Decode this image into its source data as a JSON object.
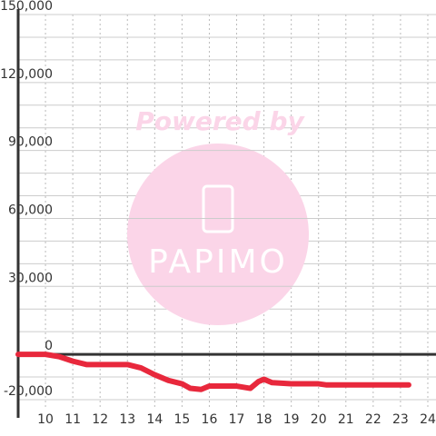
{
  "chart_data": {
    "type": "line",
    "watermark": [
      "Powered by",
      "PAPIMO"
    ],
    "x": [
      9,
      10,
      10.5,
      11,
      11.5,
      12,
      13,
      13.5,
      14,
      14.5,
      15,
      15.3,
      15.7,
      16,
      17,
      17.5,
      17.8,
      18,
      18.3,
      19,
      20,
      20.3,
      21,
      22,
      23.3
    ],
    "series": [
      {
        "color": "#e8283c",
        "values": [
          0,
          0,
          -1000,
          -3000,
          -4500,
          -4500,
          -4500,
          -6000,
          -9000,
          -11500,
          -13000,
          -15000,
          -15500,
          -14000,
          -14000,
          -15000,
          -12000,
          -11000,
          -12500,
          -13000,
          -13000,
          -13500,
          -13500,
          -13500,
          -13500
        ]
      }
    ],
    "xlim": [
      9,
      24.3
    ],
    "ylim": [
      -20000,
      150000
    ],
    "xticks": [
      10,
      11,
      12,
      13,
      14,
      15,
      16,
      17,
      18,
      19,
      20,
      21,
      22,
      23,
      24
    ],
    "yticks": [
      {
        "value": -20000,
        "label": "-20,000"
      },
      0,
      {
        "value": 30000,
        "label": "30,000"
      },
      {
        "value": 60000,
        "label": "60,000"
      },
      {
        "value": 90000,
        "label": "90,000"
      },
      {
        "value": 120000,
        "label": "120,000"
      },
      {
        "value": 150000,
        "label": "150,000"
      }
    ],
    "ygrid": [
      -10000,
      10000,
      20000,
      40000,
      50000,
      70000,
      80000,
      100000,
      110000,
      130000,
      140000
    ],
    "grid": true
  }
}
